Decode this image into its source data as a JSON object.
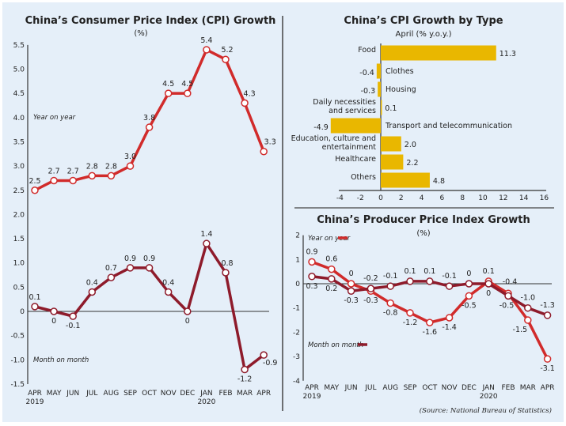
{
  "colors": {
    "background": "#e5eff9",
    "yoy": "#d12b2b",
    "mom": "#8e1b2b",
    "bar": "#e9b700",
    "axis": "#333333"
  },
  "source": "(Source: National Bureau of Statistics)",
  "chart_data": [
    {
      "type": "line",
      "title": "China’s Consumer Price Index (CPI) Growth",
      "subtitle": "(%)",
      "categories": [
        "APR",
        "MAY",
        "JUN",
        "JUL",
        "AUG",
        "SEP",
        "OCT",
        "NOV",
        "DEC",
        "JAN",
        "FEB",
        "MAR",
        "APR"
      ],
      "year_labels": [
        {
          "index": 0,
          "text": "2019"
        },
        {
          "index": 9,
          "text": "2020"
        }
      ],
      "ylim": [
        -1.5,
        5.5
      ],
      "yticks": [
        "5.5",
        "5.0",
        "4.5",
        "4.0",
        "3.5",
        "3.0",
        "2.5",
        "2.0",
        "1.5",
        "1.0",
        "0.5",
        "0",
        "-0.5",
        "-1.0",
        "-1.5"
      ],
      "series": [
        {
          "name": "Year on year",
          "values": [
            2.5,
            2.7,
            2.7,
            2.8,
            2.8,
            3.0,
            3.8,
            4.5,
            4.5,
            5.4,
            5.2,
            4.3,
            3.3
          ],
          "labels": [
            "2.5",
            "2.7",
            "2.7",
            "2.8",
            "2.8",
            "3.0",
            "3.8",
            "4.5",
            "4.5",
            "5.4",
            "5.2",
            "4.3",
            "3.3"
          ]
        },
        {
          "name": "Month on month",
          "values": [
            0.1,
            0,
            -0.1,
            0.4,
            0.7,
            0.9,
            0.9,
            0.4,
            0,
            1.4,
            0.8,
            -1.2,
            -0.9
          ],
          "labels": [
            "0.1",
            "0",
            "-0.1",
            "0.4",
            "0.7",
            "0.9",
            "0.9",
            "0.4",
            "0",
            "1.4",
            "0.8",
            "-1.2",
            "-0.9"
          ]
        }
      ]
    },
    {
      "type": "bar",
      "orientation": "horizontal",
      "title": "China’s CPI Growth by Type",
      "subtitle": "April (% y.o.y.)",
      "categories": [
        "Food",
        "Clothes",
        "Housing",
        "Daily necessities and services",
        "Transport and telecommunication",
        "Education, culture and entertainment",
        "Healthcare",
        "Others"
      ],
      "values": [
        11.3,
        -0.4,
        -0.3,
        0.1,
        -4.9,
        2.0,
        2.2,
        4.8
      ],
      "labels": [
        "11.3",
        "-0.4",
        "-0.3",
        "0.1",
        "-4.9",
        "2.0",
        "2.2",
        "4.8"
      ],
      "xlim": [
        -4,
        16
      ],
      "xticks": [
        "-4",
        "-2",
        "0",
        "2",
        "4",
        "6",
        "8",
        "10",
        "12",
        "14",
        "16"
      ]
    },
    {
      "type": "line",
      "title": "China’s Producer Price Index Growth",
      "subtitle": "(%)",
      "categories": [
        "APR",
        "MAY",
        "JUN",
        "JUL",
        "AUG",
        "SEP",
        "OCT",
        "NOV",
        "DEC",
        "JAN",
        "FEB",
        "MAR",
        "APR"
      ],
      "year_labels": [
        {
          "index": 0,
          "text": "2019"
        },
        {
          "index": 9,
          "text": "2020"
        }
      ],
      "ylim": [
        -4,
        2
      ],
      "yticks": [
        "2",
        "1",
        "0",
        "-1",
        "-2",
        "-3",
        "-4"
      ],
      "series": [
        {
          "name": "Year on year",
          "values": [
            0.9,
            0.6,
            0,
            -0.3,
            -0.8,
            -1.2,
            -1.6,
            -1.4,
            -0.5,
            0.1,
            -0.4,
            -1.5,
            -3.1
          ],
          "labels": [
            "0.9",
            "0.6",
            "0",
            "-0.3",
            "-0.8",
            "-1.2",
            "-1.6",
            "-1.4",
            "-0.5",
            "0.1",
            "-0.4",
            "-1.5",
            "-3.1"
          ]
        },
        {
          "name": "Month on month",
          "values": [
            0.3,
            0.2,
            -0.3,
            -0.2,
            -0.1,
            0.1,
            0.1,
            -0.1,
            0,
            0,
            -0.5,
            -1.0,
            -1.3
          ],
          "labels": [
            "0.3",
            "0.2",
            "-0.3",
            "-0.2",
            "-0.1",
            "0.1",
            "0.1",
            "-0.1",
            "0",
            "0",
            "-0.5",
            "-1.0",
            "-1.3"
          ]
        }
      ]
    }
  ]
}
